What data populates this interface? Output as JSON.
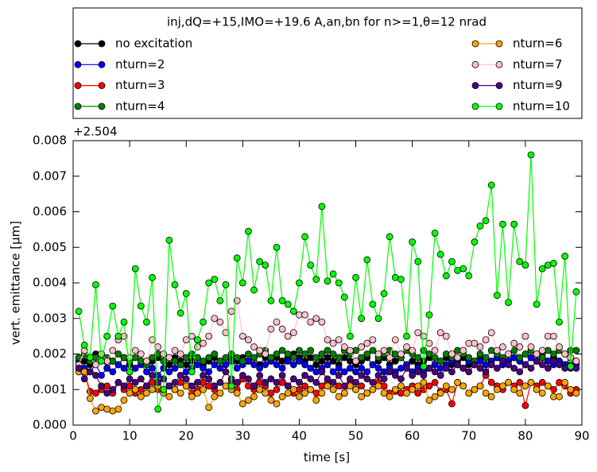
{
  "chart_data": {
    "type": "line",
    "legend_title": "inj,dQ=+15,IMO=+19.6 A,an,bn for n>=1,θ=12 nrad",
    "legend_position": "top",
    "y_offset_label": "+2.504",
    "xlabel": "time [s]",
    "ylabel": "vert. emittance [μm]",
    "xlim": [
      0,
      90
    ],
    "xticks": [
      0,
      10,
      20,
      30,
      40,
      50,
      60,
      70,
      80,
      90
    ],
    "ylim": [
      0,
      0.008
    ],
    "yticks": [
      {
        "value": 0,
        "label": "0.000"
      },
      {
        "value": 0.001,
        "label": "0.001"
      },
      {
        "value": 0.002,
        "label": "0.002"
      },
      {
        "value": 0.003,
        "label": "0.003"
      },
      {
        "value": 0.004,
        "label": "0.004"
      },
      {
        "value": 0.005,
        "label": "0.005"
      },
      {
        "value": 0.006,
        "label": "0.006"
      },
      {
        "value": 0.007,
        "label": "0.007"
      },
      {
        "value": 0.008,
        "label": "0.008"
      }
    ],
    "x": [
      1,
      2,
      3,
      4,
      5,
      6,
      7,
      8,
      9,
      10,
      11,
      12,
      13,
      14,
      15,
      16,
      17,
      18,
      19,
      20,
      21,
      22,
      23,
      24,
      25,
      26,
      27,
      28,
      29,
      30,
      31,
      32,
      33,
      34,
      35,
      36,
      37,
      38,
      39,
      40,
      41,
      42,
      43,
      44,
      45,
      46,
      47,
      48,
      49,
      50,
      51,
      52,
      53,
      54,
      55,
      56,
      57,
      58,
      59,
      60,
      61,
      62,
      63,
      64,
      65,
      66,
      67,
      68,
      69,
      70,
      71,
      72,
      73,
      74,
      75,
      76,
      77,
      78,
      79,
      80,
      81,
      82,
      83,
      84,
      85,
      86,
      87,
      88,
      89
    ],
    "series": [
      {
        "name": "no excitation",
        "color": "#000000",
        "values": [
          0.0019,
          0.0018,
          0.0017,
          0.002,
          0.0019,
          0.0016,
          0.0018,
          0.0017,
          0.0019,
          0.0017,
          0.0016,
          0.0018,
          0.0017,
          0.0018,
          0.0019,
          0.0018,
          0.0017,
          0.0019,
          0.0018,
          0.0017,
          0.0018,
          0.0019,
          0.0017,
          0.0018,
          0.0019,
          0.0018,
          0.0017,
          0.0019,
          0.0018,
          0.0019,
          0.0018,
          0.0019,
          0.0017,
          0.0019,
          0.0018,
          0.0019,
          0.0018,
          0.0019,
          0.002,
          0.0019,
          0.0018,
          0.0019,
          0.0017,
          0.0018,
          0.0019,
          0.0018,
          0.0017,
          0.0019,
          0.0018,
          0.0017,
          0.0018,
          0.0019,
          0.0017,
          0.0018,
          0.0019,
          0.0017,
          0.0018,
          0.0019,
          0.0017,
          0.0018,
          0.0017,
          0.0018,
          0.0019,
          0.0017,
          0.0018,
          0.0019,
          0.0017,
          0.0018,
          0.0019,
          0.0017,
          0.0018,
          0.0019,
          0.0017,
          0.0018,
          0.0019,
          0.0017,
          0.0018,
          0.0019,
          0.0018,
          0.0017,
          0.0019,
          0.0018,
          0.002,
          0.0018,
          0.0019,
          0.0018,
          0.0017,
          0.0019,
          0.0018
        ]
      },
      {
        "name": "nturn=2",
        "color": "#0000ff",
        "values": [
          0.0018,
          0.0016,
          0.0015,
          0.0017,
          0.0014,
          0.0016,
          0.0015,
          0.0017,
          0.0016,
          0.0015,
          0.0016,
          0.0017,
          0.0015,
          0.0016,
          0.0014,
          0.0016,
          0.0015,
          0.0016,
          0.0017,
          0.0015,
          0.0016,
          0.0017,
          0.0016,
          0.0015,
          0.0017,
          0.0016,
          0.0017,
          0.0018,
          0.0016,
          0.0017,
          0.0018,
          0.0017,
          0.0016,
          0.0017,
          0.0018,
          0.0017,
          0.0016,
          0.0018,
          0.0017,
          0.0018,
          0.0017,
          0.0016,
          0.0015,
          0.0016,
          0.0017,
          0.0015,
          0.0016,
          0.0015,
          0.0016,
          0.0015,
          0.0016,
          0.0015,
          0.0017,
          0.0016,
          0.0015,
          0.0016,
          0.0015,
          0.0016,
          0.0017,
          0.0015,
          0.0016,
          0.0015,
          0.0016,
          0.0017,
          0.0016,
          0.0017,
          0.0018,
          0.0017,
          0.0016,
          0.0018,
          0.0017,
          0.0018,
          0.0017,
          0.0018,
          0.0019,
          0.0017,
          0.0018,
          0.0019,
          0.0018,
          0.0017,
          0.0019,
          0.0018,
          0.0019,
          0.0018,
          0.0017,
          0.0018,
          0.0017,
          0.0016,
          0.0017
        ]
      },
      {
        "name": "nturn=3",
        "color": "#ff0000",
        "values": [
          0.0017,
          0.0015,
          0.00095,
          0.0009,
          0.001,
          0.0011,
          0.0009,
          0.0012,
          0.001,
          0.0011,
          0.0009,
          0.001,
          0.0011,
          0.0012,
          0.001,
          0.0009,
          0.0011,
          0.001,
          0.0012,
          0.0011,
          0.0009,
          0.001,
          0.0012,
          0.0011,
          0.001,
          0.0009,
          0.0011,
          0.0012,
          0.001,
          0.0013,
          0.0011,
          0.001,
          0.0012,
          0.0011,
          0.0009,
          0.001,
          0.0012,
          0.0011,
          0.0009,
          0.001,
          0.0011,
          0.001,
          0.0009,
          0.0011,
          0.0012,
          0.001,
          0.0011,
          0.0009,
          0.0012,
          0.001,
          0.0011,
          0.0009,
          0.001,
          0.0012,
          0.0011,
          0.0009,
          0.00095,
          0.0009,
          0.001,
          0.0011,
          0.0009,
          0.001,
          0.0011,
          0.0012,
          0.00095,
          0.001,
          0.0006,
          0.0012,
          0.0011,
          0.0009,
          0.001,
          0.0011,
          0.0014,
          0.0012,
          0.0011,
          0.001,
          0.0012,
          0.0011,
          0.0012,
          0.00055,
          0.0012,
          0.0011,
          0.0012,
          0.0011,
          0.001,
          0.0012,
          0.0011,
          0.0009,
          0.001
        ]
      },
      {
        "name": "nturn=4",
        "color": "#008000",
        "values": [
          0.0019,
          0.002,
          0.0018,
          0.0019,
          0.002,
          0.0019,
          0.0018,
          0.002,
          0.0019,
          0.0018,
          0.0019,
          0.0018,
          0.0017,
          0.0019,
          0.002,
          0.0018,
          0.0019,
          0.0018,
          0.0017,
          0.0019,
          0.002,
          0.0019,
          0.0018,
          0.0019,
          0.002,
          0.0018,
          0.0019,
          0.002,
          0.0019,
          0.0018,
          0.002,
          0.0019,
          0.002,
          0.0021,
          0.0019,
          0.002,
          0.0021,
          0.002,
          0.0019,
          0.0021,
          0.002,
          0.0021,
          0.0019,
          0.002,
          0.0021,
          0.002,
          0.0019,
          0.0021,
          0.002,
          0.0021,
          0.0019,
          0.002,
          0.0021,
          0.0019,
          0.002,
          0.0021,
          0.002,
          0.0019,
          0.0021,
          0.002,
          0.0019,
          0.0021,
          0.002,
          0.0019,
          0.0018,
          0.002,
          0.0019,
          0.0021,
          0.002,
          0.0019,
          0.0018,
          0.002,
          0.0019,
          0.0021,
          0.002,
          0.0019,
          0.002,
          0.0021,
          0.0019,
          0.002,
          0.0021,
          0.002,
          0.0019,
          0.0021,
          0.002,
          0.0021,
          0.002,
          0.0021,
          0.0021
        ]
      },
      {
        "name": "nturn=6",
        "color": "#ffa500",
        "values": [
          0.0015,
          0.0015,
          0.00075,
          0.0004,
          0.0005,
          0.00045,
          0.0004,
          0.00045,
          0.0007,
          0.0009,
          0.001,
          0.0008,
          0.0009,
          0.001,
          0.0011,
          0.0009,
          0.0008,
          0.001,
          0.0009,
          0.0011,
          0.0008,
          0.0009,
          0.001,
          0.0005,
          0.0008,
          0.0009,
          0.0011,
          0.001,
          0.0009,
          0.0006,
          0.0007,
          0.0008,
          0.001,
          0.0009,
          0.0007,
          0.0006,
          0.0008,
          0.0009,
          0.001,
          0.0008,
          0.0009,
          0.001,
          0.0007,
          0.0009,
          0.0011,
          0.001,
          0.0008,
          0.0009,
          0.0011,
          0.001,
          0.0008,
          0.0009,
          0.001,
          0.0011,
          0.0009,
          0.0008,
          0.001,
          0.0011,
          0.0009,
          0.001,
          0.0011,
          0.0012,
          0.0007,
          0.0008,
          0.0009,
          0.0011,
          0.001,
          0.0012,
          0.0011,
          0.0009,
          0.001,
          0.0011,
          0.0009,
          0.0008,
          0.001,
          0.0011,
          0.0012,
          0.001,
          0.0009,
          0.0011,
          0.0012,
          0.001,
          0.0009,
          0.0011,
          0.0008,
          0.0008,
          0.0012,
          0.001,
          0.0009
        ]
      },
      {
        "name": "nturn=7",
        "color": "#ffc0cb",
        "values": [
          0.0017,
          0.0021,
          0.0019,
          0.0017,
          0.002,
          0.0018,
          0.0021,
          0.0024,
          0.0025,
          0.0019,
          0.0021,
          0.002,
          0.0018,
          0.0024,
          0.0022,
          0.002,
          0.0019,
          0.0021,
          0.002,
          0.0024,
          0.0025,
          0.0022,
          0.0023,
          0.0025,
          0.003,
          0.0029,
          0.0026,
          0.0032,
          0.0035,
          0.0025,
          0.0024,
          0.0022,
          0.0021,
          0.002,
          0.0027,
          0.0029,
          0.0027,
          0.0025,
          0.0026,
          0.0031,
          0.0031,
          0.0029,
          0.003,
          0.0029,
          0.0024,
          0.0023,
          0.0024,
          0.0022,
          0.0021,
          0.0018,
          0.0022,
          0.0023,
          0.0024,
          0.002,
          0.0021,
          0.0019,
          0.0024,
          0.002,
          0.0022,
          0.0021,
          0.0026,
          0.0025,
          0.0023,
          0.0021,
          0.0026,
          0.0025,
          0.002,
          0.0019,
          0.0021,
          0.0023,
          0.0023,
          0.0022,
          0.0024,
          0.0026,
          0.0021,
          0.0022,
          0.002,
          0.0023,
          0.0022,
          0.0025,
          0.0022,
          0.002,
          0.0021,
          0.0025,
          0.0025,
          0.0022,
          0.002,
          0.0019,
          0.0018
        ]
      },
      {
        "name": "nturn=9",
        "color": "#4b0082",
        "values": [
          0.0016,
          0.0013,
          0.0015,
          0.0014,
          0.0011,
          0.0009,
          0.001,
          0.0012,
          0.0011,
          0.0013,
          0.0012,
          0.0013,
          0.0011,
          0.0014,
          0.0012,
          0.0013,
          0.0011,
          0.0012,
          0.0014,
          0.0013,
          0.0011,
          0.0012,
          0.0014,
          0.0013,
          0.0011,
          0.0012,
          0.0015,
          0.0013,
          0.0012,
          0.0014,
          0.0013,
          0.0011,
          0.0014,
          0.0012,
          0.0013,
          0.0012,
          0.0014,
          0.0011,
          0.0013,
          0.0012,
          0.0014,
          0.0013,
          0.0012,
          0.0015,
          0.0013,
          0.0012,
          0.0014,
          0.0011,
          0.0013,
          0.0012,
          0.0014,
          0.0013,
          0.0012,
          0.0014,
          0.0013,
          0.0015,
          0.0014,
          0.0013,
          0.0016,
          0.0014,
          0.0015,
          0.0014,
          0.0016,
          0.0015,
          0.0014,
          0.0016,
          0.0015,
          0.0017,
          0.0016,
          0.0015,
          0.0017,
          0.0016,
          0.0015,
          0.0017,
          0.0016,
          0.0018,
          0.0017,
          0.0016,
          0.0015,
          0.0017,
          0.0016,
          0.0018,
          0.0017,
          0.0016,
          0.0018,
          0.0017,
          0.0016,
          0.0017,
          0.0016
        ]
      },
      {
        "name": "nturn=10",
        "color": "#00ff00",
        "values": [
          0.0032,
          0.00225,
          0.0019,
          0.00395,
          0.0018,
          0.0025,
          0.00335,
          0.0025,
          0.0029,
          0.0015,
          0.0044,
          0.00335,
          0.0029,
          0.00415,
          0.00045,
          0.001,
          0.0052,
          0.00395,
          0.00315,
          0.0037,
          0.0015,
          0.0024,
          0.0029,
          0.004,
          0.0041,
          0.0035,
          0.00395,
          0.0011,
          0.0047,
          0.004,
          0.00545,
          0.0038,
          0.0046,
          0.0045,
          0.0035,
          0.005,
          0.0035,
          0.0034,
          0.0032,
          0.004,
          0.0053,
          0.0045,
          0.0041,
          0.00615,
          0.00405,
          0.00425,
          0.004,
          0.0036,
          0.0025,
          0.00415,
          0.003,
          0.00465,
          0.0034,
          0.003,
          0.0037,
          0.0053,
          0.00415,
          0.0041,
          0.0025,
          0.00515,
          0.0046,
          0.00165,
          0.0031,
          0.0054,
          0.0048,
          0.0042,
          0.0046,
          0.00435,
          0.0044,
          0.0042,
          0.00515,
          0.0056,
          0.00575,
          0.00675,
          0.00365,
          0.00565,
          0.00345,
          0.00565,
          0.0046,
          0.0045,
          0.0076,
          0.0034,
          0.0044,
          0.0045,
          0.00455,
          0.0029,
          0.00475,
          0.00165,
          0.00375
        ]
      }
    ]
  }
}
